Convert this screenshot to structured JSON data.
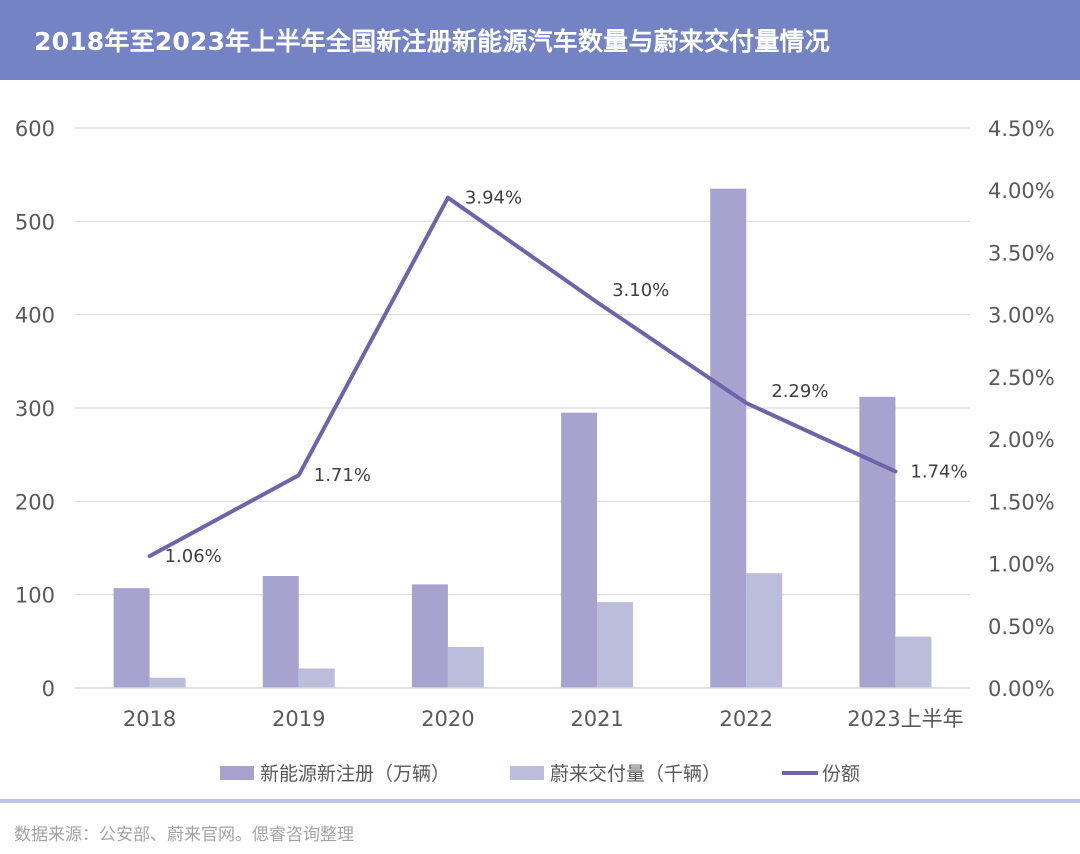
{
  "title": "2018年至2023年上半年全国新注册新能源汽车数量与蔚来交付量情况",
  "source": "数据来源：公安部、蔚来官网。偲睿咨询整理",
  "colors": {
    "title_bg": "#7383c4",
    "registrations": "#a8a2ce",
    "nio_deliveries": "#bcbcdb",
    "share": "#6f63a9",
    "grid": "#d9d9d9",
    "axis_text": "#595959"
  },
  "chart_data": {
    "type": "bar",
    "categories": [
      "2018",
      "2019",
      "2020",
      "2021",
      "2022",
      "2023上半年"
    ],
    "series": [
      {
        "name": "新能源新注册（万辆）",
        "type": "bar",
        "axis": "left",
        "values": [
          107,
          120,
          111,
          295,
          535,
          312
        ]
      },
      {
        "name": "蔚来交付量（千辆）",
        "type": "bar",
        "axis": "left",
        "values": [
          11,
          21,
          44,
          92,
          123,
          55
        ]
      },
      {
        "name": "份额",
        "type": "line",
        "axis": "right",
        "values": [
          1.06,
          1.71,
          3.94,
          3.1,
          2.29,
          1.74
        ],
        "labels": [
          "1.06%",
          "1.71%",
          "3.94%",
          "3.10%",
          "2.29%",
          "1.74%"
        ]
      }
    ],
    "y_left": {
      "ylim": [
        0,
        600
      ],
      "ticks": [
        "0",
        "100",
        "200",
        "300",
        "400",
        "500",
        "600"
      ]
    },
    "y_right": {
      "ylim": [
        0,
        4.5
      ],
      "ticks": [
        "0.00%",
        "0.50%",
        "1.00%",
        "1.50%",
        "2.00%",
        "2.50%",
        "3.00%",
        "3.50%",
        "4.00%",
        "4.50%"
      ]
    },
    "grid": true,
    "legend_position": "bottom"
  }
}
